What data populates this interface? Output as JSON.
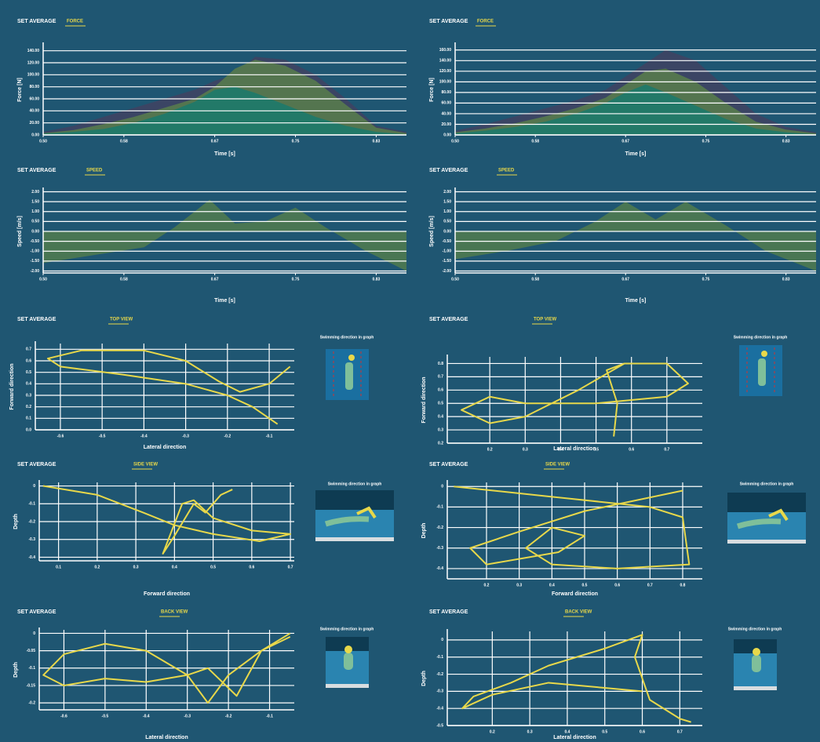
{
  "chart_data": [
    {
      "type": "area",
      "title": "SET AVERAGE",
      "subtitle": "FORCE",
      "xlabel": "Time [s]",
      "ylabel": "Force [N]",
      "grid": "y",
      "x": [
        0.5,
        0.53,
        0.56,
        0.59,
        0.62,
        0.65,
        0.67,
        0.69,
        0.71,
        0.74,
        0.77,
        0.8,
        0.83,
        0.86
      ],
      "series": [
        {
          "color": "#3e4463",
          "values": [
            5,
            15,
            30,
            45,
            60,
            75,
            90,
            100,
            130,
            125,
            100,
            60,
            15,
            5
          ]
        },
        {
          "color": "#587a4c",
          "values": [
            3,
            8,
            18,
            30,
            45,
            60,
            80,
            110,
            125,
            115,
            90,
            50,
            12,
            3
          ]
        },
        {
          "color": "#1d7a6a",
          "values": [
            2,
            5,
            10,
            20,
            35,
            55,
            75,
            80,
            70,
            50,
            30,
            15,
            5,
            1
          ]
        }
      ],
      "xlim": [
        0.5,
        0.86
      ],
      "xticks": [
        {
          "value": 0.5,
          "label": "0.50"
        },
        {
          "value": 0.58,
          "label": "0.58"
        },
        {
          "value": 0.67,
          "label": "0.67"
        },
        {
          "value": 0.75,
          "label": "0.75"
        },
        {
          "value": 0.83,
          "label": "0.83"
        }
      ],
      "ylim": [
        0,
        150
      ],
      "yticks": [
        {
          "value": 0,
          "label": "0.00"
        },
        {
          "value": 20,
          "label": "20.00"
        },
        {
          "value": 40,
          "label": "40.00"
        },
        {
          "value": 60,
          "label": "60.00"
        },
        {
          "value": 80,
          "label": "80.00"
        },
        {
          "value": 100,
          "label": "100.00"
        },
        {
          "value": 120,
          "label": "120.00"
        },
        {
          "value": 140,
          "label": "140.00"
        }
      ]
    },
    {
      "type": "area",
      "title": "SET AVERAGE",
      "subtitle": "FORCE",
      "xlabel": "Time [s]",
      "ylabel": "Force [N]",
      "grid": "y",
      "x": [
        0.5,
        0.53,
        0.56,
        0.59,
        0.62,
        0.65,
        0.67,
        0.69,
        0.71,
        0.74,
        0.77,
        0.8,
        0.83,
        0.86
      ],
      "series": [
        {
          "color": "#3e4463",
          "values": [
            8,
            20,
            35,
            50,
            65,
            85,
            110,
            135,
            160,
            140,
            90,
            40,
            15,
            5
          ]
        },
        {
          "color": "#587a4c",
          "values": [
            5,
            12,
            22,
            35,
            50,
            70,
            95,
            120,
            125,
            100,
            60,
            25,
            10,
            3
          ]
        },
        {
          "color": "#1d7a6a",
          "values": [
            3,
            8,
            15,
            25,
            40,
            60,
            80,
            95,
            80,
            55,
            30,
            12,
            5,
            1
          ]
        }
      ],
      "xlim": [
        0.5,
        0.86
      ],
      "xticks": [
        {
          "value": 0.5,
          "label": "0.50"
        },
        {
          "value": 0.58,
          "label": "0.58"
        },
        {
          "value": 0.67,
          "label": "0.67"
        },
        {
          "value": 0.75,
          "label": "0.75"
        },
        {
          "value": 0.83,
          "label": "0.83"
        }
      ],
      "ylim": [
        0,
        170
      ],
      "yticks": [
        {
          "value": 0,
          "label": "0.00"
        },
        {
          "value": 20,
          "label": "20.00"
        },
        {
          "value": 40,
          "label": "40.00"
        },
        {
          "value": 60,
          "label": "60.00"
        },
        {
          "value": 80,
          "label": "80.00"
        },
        {
          "value": 100,
          "label": "100.00"
        },
        {
          "value": 120,
          "label": "120.00"
        },
        {
          "value": 140,
          "label": "140.00"
        },
        {
          "value": 160,
          "label": "160.00"
        }
      ]
    },
    {
      "type": "area",
      "title": "SET AVERAGE",
      "subtitle": "SPEED",
      "xlabel": "Time [s]",
      "ylabel": "Speed [m/s]",
      "grid": "y",
      "x": [
        0.5,
        0.55,
        0.6,
        0.63,
        0.665,
        0.69,
        0.72,
        0.75,
        0.78,
        0.82,
        0.86
      ],
      "series": [
        {
          "color": "#4e7a50",
          "values": [
            -1.6,
            -1.2,
            -0.8,
            0.2,
            1.6,
            0.4,
            0.5,
            1.2,
            0.2,
            -1.0,
            -2.0
          ]
        }
      ],
      "xlim": [
        0.5,
        0.86
      ],
      "xticks": [
        {
          "value": 0.5,
          "label": "0.50"
        },
        {
          "value": 0.58,
          "label": "0.58"
        },
        {
          "value": 0.67,
          "label": "0.67"
        },
        {
          "value": 0.75,
          "label": "0.75"
        },
        {
          "value": 0.83,
          "label": "0.83"
        }
      ],
      "ylim": [
        -2.1,
        2.1
      ],
      "yticks": [
        {
          "value": -2,
          "label": "-2.00"
        },
        {
          "value": -1.5,
          "label": "-1.50"
        },
        {
          "value": -1,
          "label": "-1.00"
        },
        {
          "value": -0.5,
          "label": "-0.50"
        },
        {
          "value": 0,
          "label": "0.00"
        },
        {
          "value": 0.5,
          "label": "0.50"
        },
        {
          "value": 1,
          "label": "1.00"
        },
        {
          "value": 1.5,
          "label": "1.50"
        },
        {
          "value": 2,
          "label": "2.00"
        }
      ]
    },
    {
      "type": "area",
      "title": "SET AVERAGE",
      "subtitle": "SPEED",
      "xlabel": "Time [s]",
      "ylabel": "Speed [m/s]",
      "grid": "y",
      "x": [
        0.5,
        0.55,
        0.6,
        0.64,
        0.67,
        0.7,
        0.73,
        0.77,
        0.81,
        0.86
      ],
      "series": [
        {
          "color": "#4e7a50",
          "values": [
            -1.4,
            -1.0,
            -0.5,
            0.5,
            1.5,
            0.6,
            1.5,
            0.3,
            -1.0,
            -2.0
          ]
        }
      ],
      "xlim": [
        0.5,
        0.86
      ],
      "xticks": [
        {
          "value": 0.5,
          "label": "0.50"
        },
        {
          "value": 0.58,
          "label": "0.58"
        },
        {
          "value": 0.67,
          "label": "0.67"
        },
        {
          "value": 0.75,
          "label": "0.75"
        },
        {
          "value": 0.83,
          "label": "0.83"
        }
      ],
      "ylim": [
        -2.1,
        2.1
      ],
      "yticks": [
        {
          "value": -2,
          "label": "-2.00"
        },
        {
          "value": -1.5,
          "label": "-1.50"
        },
        {
          "value": -1,
          "label": "-1.00"
        },
        {
          "value": -0.5,
          "label": "-0.50"
        },
        {
          "value": 0,
          "label": "0.00"
        },
        {
          "value": 0.5,
          "label": "0.50"
        },
        {
          "value": 1,
          "label": "1.00"
        },
        {
          "value": 1.5,
          "label": "1.50"
        },
        {
          "value": 2,
          "label": "2.00"
        }
      ]
    },
    {
      "type": "line",
      "title": "SET AVERAGE",
      "subtitle": "TOP VIEW",
      "xlabel": "Lateral direction",
      "ylabel": "Forward direction",
      "annotation": "Swimming direction in graph",
      "grid": "both",
      "x": [
        -0.08,
        -0.14,
        -0.2,
        -0.3,
        -0.45,
        -0.6,
        -0.63,
        -0.55,
        -0.4,
        -0.3,
        -0.22,
        -0.17,
        -0.1,
        -0.05
      ],
      "series": [
        {
          "color": "#e8d84a",
          "values": [
            0.05,
            0.2,
            0.3,
            0.4,
            0.48,
            0.55,
            0.62,
            0.69,
            0.69,
            0.6,
            0.42,
            0.33,
            0.4,
            0.55
          ]
        }
      ],
      "xlim": [
        -0.66,
        -0.04
      ],
      "xticks": [
        -0.6,
        -0.5,
        -0.4,
        -0.3,
        -0.2,
        -0.1
      ],
      "ylim": [
        0,
        0.75
      ],
      "yticks": [
        {
          "value": 0,
          "label": "0.0"
        },
        0.1,
        0.2,
        0.3,
        0.4,
        0.5,
        0.6,
        0.7
      ]
    },
    {
      "type": "line",
      "title": "SET AVERAGE",
      "subtitle": "TOP VIEW",
      "xlabel": "Lateral direction",
      "ylabel": "Forward direction",
      "annotation": "Swimming direction in graph",
      "grid": "both",
      "x": [
        0.55,
        0.56,
        0.53,
        0.58,
        0.7,
        0.76,
        0.7,
        0.5,
        0.3,
        0.2,
        0.12,
        0.2,
        0.3,
        0.45,
        0.58
      ],
      "series": [
        {
          "color": "#e8d84a",
          "values": [
            0.25,
            0.5,
            0.75,
            0.8,
            0.8,
            0.65,
            0.55,
            0.5,
            0.5,
            0.55,
            0.45,
            0.35,
            0.4,
            0.6,
            0.8
          ]
        }
      ],
      "xlim": [
        0.08,
        0.8
      ],
      "xticks": [
        0.2,
        0.3,
        0.4,
        0.5,
        0.6,
        0.7
      ],
      "ylim": [
        0.2,
        0.85
      ],
      "yticks": [
        0.2,
        0.3,
        0.4,
        0.5,
        0.6,
        0.7,
        0.8
      ]
    },
    {
      "type": "line",
      "title": "SET AVERAGE",
      "subtitle": "SIDE VIEW",
      "xlabel": "Forward direction",
      "ylabel": "Depth",
      "annotation": "Swimming direction in graph",
      "grid": "both",
      "x": [
        0.06,
        0.2,
        0.32,
        0.4,
        0.5,
        0.62,
        0.7,
        0.6,
        0.5,
        0.45,
        0.42,
        0.37,
        0.4,
        0.45,
        0.48,
        0.52,
        0.55
      ],
      "series": [
        {
          "color": "#e8d84a",
          "values": [
            0,
            -0.05,
            -0.15,
            -0.22,
            -0.27,
            -0.31,
            -0.27,
            -0.25,
            -0.18,
            -0.08,
            -0.1,
            -0.38,
            -0.28,
            -0.1,
            -0.15,
            -0.05,
            -0.02
          ]
        }
      ],
      "xlim": [
        0.05,
        0.71
      ],
      "xticks": [
        0.1,
        0.2,
        0.3,
        0.4,
        0.5,
        0.6,
        0.7
      ],
      "ylim": [
        -0.42,
        0.02
      ],
      "yticks": [
        -0.4,
        -0.3,
        -0.2,
        -0.1,
        0
      ]
    },
    {
      "type": "line",
      "title": "SET AVERAGE",
      "subtitle": "SIDE VIEW",
      "xlabel": "Forward direction",
      "ylabel": "Depth",
      "annotation": "Swimming direction in graph",
      "grid": "both",
      "x": [
        0.1,
        0.4,
        0.7,
        0.8,
        0.82,
        0.6,
        0.4,
        0.32,
        0.4,
        0.5,
        0.42,
        0.2,
        0.15,
        0.3,
        0.5,
        0.8
      ],
      "series": [
        {
          "color": "#e8d84a",
          "values": [
            0,
            -0.05,
            -0.1,
            -0.15,
            -0.38,
            -0.4,
            -0.38,
            -0.3,
            -0.2,
            -0.24,
            -0.32,
            -0.38,
            -0.3,
            -0.22,
            -0.12,
            -0.02
          ]
        }
      ],
      "xlim": [
        0.08,
        0.86
      ],
      "xticks": [
        0.2,
        0.3,
        0.4,
        0.5,
        0.6,
        0.7,
        0.8
      ],
      "ylim": [
        -0.45,
        0.02
      ],
      "yticks": [
        -0.4,
        -0.3,
        -0.2,
        -0.1,
        0
      ]
    },
    {
      "type": "line",
      "title": "SET AVERAGE",
      "subtitle": "BACK VIEW",
      "xlabel": "Lateral direction",
      "ylabel": "Depth",
      "annotation": "Swimming direction in graph",
      "grid": "both",
      "x": [
        -0.05,
        -0.12,
        -0.2,
        -0.25,
        -0.3,
        -0.4,
        -0.5,
        -0.6,
        -0.65,
        -0.6,
        -0.5,
        -0.4,
        -0.3,
        -0.25,
        -0.18,
        -0.12,
        -0.05
      ],
      "series": [
        {
          "color": "#e8d84a",
          "values": [
            0.0,
            -0.05,
            -0.12,
            -0.2,
            -0.12,
            -0.05,
            -0.03,
            -0.06,
            -0.12,
            -0.15,
            -0.13,
            -0.14,
            -0.12,
            -0.1,
            -0.18,
            -0.05,
            -0.01
          ]
        }
      ],
      "xlim": [
        -0.66,
        -0.04
      ],
      "xticks": [
        -0.6,
        -0.5,
        -0.4,
        -0.3,
        -0.2,
        -0.1
      ],
      "ylim": [
        -0.22,
        0.01
      ],
      "yticks": [
        -0.2,
        -0.15,
        -0.1,
        -0.05,
        0
      ]
    },
    {
      "type": "line",
      "title": "SET AVERAGE",
      "subtitle": "BACK VIEW",
      "xlabel": "Lateral direction",
      "ylabel": "Depth",
      "annotation": "Swimming direction in graph",
      "grid": "both",
      "x": [
        0.73,
        0.7,
        0.62,
        0.58,
        0.6,
        0.5,
        0.35,
        0.25,
        0.15,
        0.12,
        0.2,
        0.35,
        0.5,
        0.6
      ],
      "series": [
        {
          "color": "#e8d84a",
          "values": [
            -0.48,
            -0.46,
            -0.35,
            -0.1,
            0.03,
            -0.05,
            -0.15,
            -0.25,
            -0.33,
            -0.4,
            -0.32,
            -0.25,
            -0.28,
            -0.3
          ]
        }
      ],
      "xlim": [
        0.08,
        0.76
      ],
      "xticks": [
        0.2,
        0.3,
        0.4,
        0.5,
        0.6,
        0.7
      ],
      "ylim": [
        -0.5,
        0.05
      ],
      "yticks": [
        -0.5,
        -0.4,
        -0.3,
        -0.2,
        -0.1,
        0
      ]
    }
  ]
}
